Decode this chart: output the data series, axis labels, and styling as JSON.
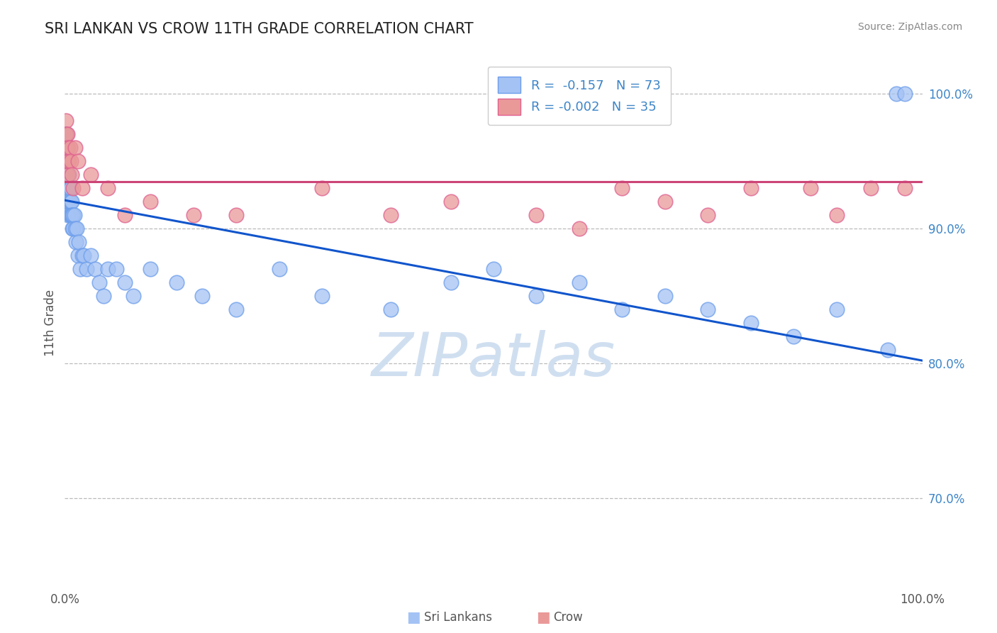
{
  "title": "SRI LANKAN VS CROW 11TH GRADE CORRELATION CHART",
  "source_text": "Source: ZipAtlas.com",
  "ylabel": "11th Grade",
  "xlim": [
    0.0,
    1.0
  ],
  "ylim": [
    0.635,
    1.025
  ],
  "yticks": [
    0.7,
    0.8,
    0.9,
    1.0
  ],
  "ytick_labels": [
    "70.0%",
    "80.0%",
    "90.0%",
    "100.0%"
  ],
  "xtick_labels": [
    "0.0%",
    "100.0%"
  ],
  "background_color": "#ffffff",
  "grid_color": "#bbbbbb",
  "title_color": "#222222",
  "title_fontsize": 15,
  "blue_color": "#a4c2f4",
  "blue_edge_color": "#6d9eeb",
  "pink_color": "#ea9999",
  "pink_edge_color": "#e06090",
  "blue_line_color": "#1155cc",
  "pink_line_color": "#cc4477",
  "watermark_color": "#d0dff0",
  "blue_trend_x0": 0.0,
  "blue_trend_y0": 0.921,
  "blue_trend_x1": 1.0,
  "blue_trend_y1": 0.802,
  "pink_trend_y": 0.935,
  "sri_lankan_x": [
    0.001,
    0.001,
    0.001,
    0.001,
    0.001,
    0.001,
    0.002,
    0.002,
    0.002,
    0.002,
    0.002,
    0.003,
    0.003,
    0.003,
    0.003,
    0.003,
    0.004,
    0.004,
    0.004,
    0.004,
    0.005,
    0.005,
    0.005,
    0.006,
    0.006,
    0.006,
    0.007,
    0.007,
    0.007,
    0.008,
    0.008,
    0.009,
    0.009,
    0.01,
    0.01,
    0.011,
    0.012,
    0.013,
    0.014,
    0.015,
    0.016,
    0.018,
    0.02,
    0.022,
    0.025,
    0.03,
    0.035,
    0.04,
    0.045,
    0.05,
    0.06,
    0.07,
    0.08,
    0.1,
    0.13,
    0.16,
    0.2,
    0.25,
    0.3,
    0.38,
    0.45,
    0.5,
    0.55,
    0.6,
    0.65,
    0.7,
    0.75,
    0.8,
    0.85,
    0.9,
    0.96,
    0.97,
    0.98
  ],
  "sri_lankan_y": [
    0.97,
    0.96,
    0.95,
    0.94,
    0.93,
    0.92,
    0.97,
    0.96,
    0.95,
    0.94,
    0.93,
    0.96,
    0.95,
    0.94,
    0.93,
    0.92,
    0.95,
    0.94,
    0.93,
    0.91,
    0.94,
    0.93,
    0.92,
    0.93,
    0.92,
    0.91,
    0.93,
    0.92,
    0.91,
    0.92,
    0.91,
    0.91,
    0.9,
    0.91,
    0.9,
    0.91,
    0.9,
    0.89,
    0.9,
    0.88,
    0.89,
    0.87,
    0.88,
    0.88,
    0.87,
    0.88,
    0.87,
    0.86,
    0.85,
    0.87,
    0.87,
    0.86,
    0.85,
    0.87,
    0.86,
    0.85,
    0.84,
    0.87,
    0.85,
    0.84,
    0.86,
    0.87,
    0.85,
    0.86,
    0.84,
    0.85,
    0.84,
    0.83,
    0.82,
    0.84,
    0.81,
    1.0,
    1.0
  ],
  "crow_x": [
    0.001,
    0.001,
    0.002,
    0.002,
    0.003,
    0.003,
    0.004,
    0.004,
    0.005,
    0.006,
    0.007,
    0.008,
    0.01,
    0.012,
    0.015,
    0.02,
    0.03,
    0.05,
    0.07,
    0.1,
    0.15,
    0.2,
    0.3,
    0.38,
    0.45,
    0.55,
    0.6,
    0.65,
    0.7,
    0.75,
    0.8,
    0.87,
    0.9,
    0.94,
    0.98
  ],
  "crow_y": [
    0.98,
    0.97,
    0.96,
    0.95,
    0.97,
    0.95,
    0.96,
    0.94,
    0.95,
    0.96,
    0.95,
    0.94,
    0.93,
    0.96,
    0.95,
    0.93,
    0.94,
    0.93,
    0.91,
    0.92,
    0.91,
    0.91,
    0.93,
    0.91,
    0.92,
    0.91,
    0.9,
    0.93,
    0.92,
    0.91,
    0.93,
    0.93,
    0.91,
    0.93,
    0.93
  ]
}
